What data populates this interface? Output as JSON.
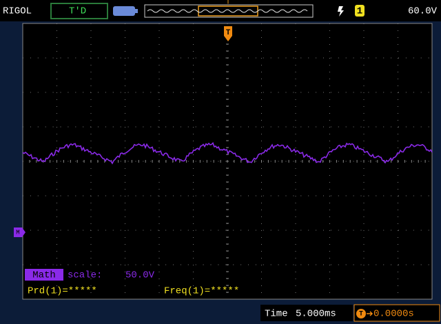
{
  "top_bar": {
    "brand": "RIGOL",
    "status": "T'D",
    "trigger_marker": "T",
    "channel": "1",
    "trigger_level": "60.0V"
  },
  "math_marker": "M",
  "math": {
    "label": "Math",
    "scale_label": "scale:",
    "scale": "50.0V"
  },
  "measurements": [
    "Prd(1)=*****",
    "Freq(1)=*****"
  ],
  "bottom_bar": {
    "time_label": "Time",
    "time": "5.000ms",
    "trigger_icon": "T",
    "trigger_offset": "0.0000s"
  }
}
